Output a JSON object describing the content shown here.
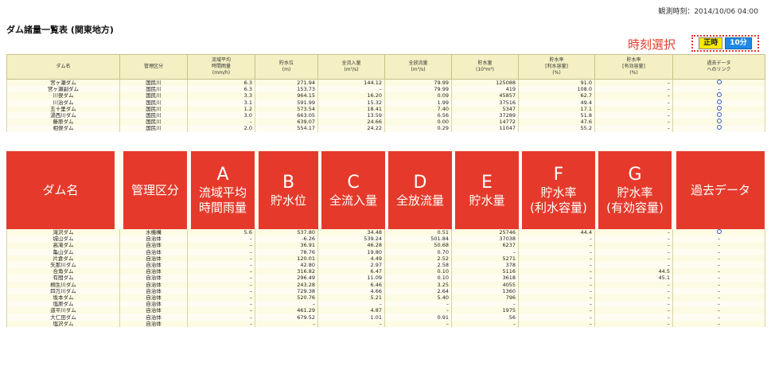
{
  "observation": "観測時刻：2014/10/06 04:00",
  "page_title": "ダム諸量一覧表 (関東地方)",
  "time_select": {
    "label": "時刻選択",
    "btn_hour": "正時",
    "btn_10min": "10分"
  },
  "columns": [
    {
      "l1": "ダム名",
      "l2": "",
      "l3": ""
    },
    {
      "l1": "管理区分",
      "l2": "",
      "l3": ""
    },
    {
      "l1": "流域平均",
      "l2": "時間雨量",
      "l3": "(mm/h)"
    },
    {
      "l1": "貯水位",
      "l2": "(m)",
      "l3": ""
    },
    {
      "l1": "全流入量",
      "l2": "(m³/s)",
      "l3": ""
    },
    {
      "l1": "全放流量",
      "l2": "(m³/s)",
      "l3": ""
    },
    {
      "l1": "貯水量",
      "l2": "(10³m³)",
      "l3": ""
    },
    {
      "l1": "貯水率",
      "l2": "[利水容量]",
      "l3": "(%)"
    },
    {
      "l1": "貯水率",
      "l2": "[有効容量]",
      "l3": "(%)"
    },
    {
      "l1": "過去データ",
      "l2": "へのリンク",
      "l3": ""
    }
  ],
  "rows_top": [
    {
      "name": "宮ヶ瀬ダム",
      "mgmt": "国民川",
      "rain": "6.3",
      "level": "271.94",
      "inflow": "144.12",
      "outflow": "79.99",
      "storage": "125088",
      "rate1": "91.0",
      "rate2": "–",
      "link": true
    },
    {
      "name": "宮ヶ瀬副ダム",
      "mgmt": "国民川",
      "rain": "6.3",
      "level": "153.73",
      "inflow": "–",
      "outflow": "79.99",
      "storage": "419",
      "rate1": "108.0",
      "rate2": "–",
      "link": false
    },
    {
      "name": "川俣ダム",
      "mgmt": "国民川",
      "rain": "3.3",
      "level": "964.15",
      "inflow": "16.20",
      "outflow": "0.09",
      "storage": "45857",
      "rate1": "62.7",
      "rate2": "–",
      "link": true
    },
    {
      "name": "川治ダム",
      "mgmt": "国民川",
      "rain": "3.1",
      "level": "591.99",
      "inflow": "15.32",
      "outflow": "1.99",
      "storage": "37516",
      "rate1": "49.4",
      "rate2": "–",
      "link": true
    },
    {
      "name": "五十里ダム",
      "mgmt": "国民川",
      "rain": "1.2",
      "level": "573.54",
      "inflow": "18.41",
      "outflow": "7.40",
      "storage": "5347",
      "rate1": "17.1",
      "rate2": "–",
      "link": true
    },
    {
      "name": "湯西川ダム",
      "mgmt": "国民川",
      "rain": "3.0",
      "level": "663.05",
      "inflow": "13.59",
      "outflow": "0.56",
      "storage": "37289",
      "rate1": "51.8",
      "rate2": "–",
      "link": true
    },
    {
      "name": "藤原ダム",
      "mgmt": "国民川",
      "rain": "–",
      "level": "639.07",
      "inflow": "24.66",
      "outflow": "0.00",
      "storage": "14772",
      "rate1": "47.6",
      "rate2": "–",
      "link": true
    },
    {
      "name": "相俣ダム",
      "mgmt": "国民川",
      "rain": "2.0",
      "level": "554.17",
      "inflow": "24.22",
      "outflow": "0.29",
      "storage": "11047",
      "rate1": "55.2",
      "rate2": "–",
      "link": true
    }
  ],
  "rows_bottom": [
    {
      "name": "滝沢ダム",
      "mgmt": "水機構",
      "rain": "5.6",
      "level": "537.80",
      "inflow": "34.48",
      "outflow": "0.51",
      "storage": "25746",
      "rate1": "44.4",
      "rate2": "–",
      "link": true
    },
    {
      "name": "城山ダム",
      "mgmt": "自治体",
      "rain": "–",
      "level": "-6.26",
      "inflow": "539.24",
      "outflow": "501.84",
      "storage": "37038",
      "rate1": "–",
      "rate2": "–",
      "link": false
    },
    {
      "name": "高滝ダム",
      "mgmt": "自治体",
      "rain": "–",
      "level": "36.91",
      "inflow": "46.28",
      "outflow": "50.68",
      "storage": "6237",
      "rate1": "–",
      "rate2": "–",
      "link": false
    },
    {
      "name": "亀山ダム",
      "mgmt": "自治体",
      "rain": "–",
      "level": "78.76",
      "inflow": "19.80",
      "outflow": "0.70",
      "storage": "–",
      "rate1": "–",
      "rate2": "–",
      "link": false
    },
    {
      "name": "片倉ダム",
      "mgmt": "自治体",
      "rain": "–",
      "level": "120.01",
      "inflow": "4.49",
      "outflow": "2.52",
      "storage": "5271",
      "rate1": "–",
      "rate2": "–",
      "link": false
    },
    {
      "name": "矢那川ダム",
      "mgmt": "自治体",
      "rain": "–",
      "level": "42.80",
      "inflow": "2.97",
      "outflow": "2.58",
      "storage": "378",
      "rate1": "–",
      "rate2": "–",
      "link": false
    },
    {
      "name": "合角ダム",
      "mgmt": "自治体",
      "rain": "–",
      "level": "316.82",
      "inflow": "6.47",
      "outflow": "0.10",
      "storage": "5116",
      "rate1": "–",
      "rate2": "44.5",
      "link": false
    },
    {
      "name": "有間ダム",
      "mgmt": "自治体",
      "rain": "–",
      "level": "296.49",
      "inflow": "11.09",
      "outflow": "0.10",
      "storage": "3618",
      "rate1": "–",
      "rate2": "45.1",
      "link": false
    },
    {
      "name": "桐生川ダム",
      "mgmt": "自治体",
      "rain": "–",
      "level": "243.28",
      "inflow": "6.46",
      "outflow": "3.25",
      "storage": "4055",
      "rate1": "–",
      "rate2": "–",
      "link": false
    },
    {
      "name": "四万川ダム",
      "mgmt": "自治体",
      "rain": "–",
      "level": "729.38",
      "inflow": "4.66",
      "outflow": "2.64",
      "storage": "1360",
      "rate1": "–",
      "rate2": "–",
      "link": false
    },
    {
      "name": "坂本ダム",
      "mgmt": "自治体",
      "rain": "–",
      "level": "520.76",
      "inflow": "5.21",
      "outflow": "5.40",
      "storage": "796",
      "rate1": "–",
      "rate2": "–",
      "link": false
    },
    {
      "name": "塩原ダム",
      "mgmt": "自治体",
      "rain": "–",
      "level": "–",
      "inflow": "–",
      "outflow": "–",
      "storage": "–",
      "rate1": "–",
      "rate2": "–",
      "link": false
    },
    {
      "name": "道平川ダム",
      "mgmt": "自治体",
      "rain": "–",
      "level": "461.29",
      "inflow": "4.87",
      "outflow": "–",
      "storage": "1975",
      "rate1": "–",
      "rate2": "–",
      "link": false
    },
    {
      "name": "大仁田ダム",
      "mgmt": "自治体",
      "rain": "–",
      "level": "679.52",
      "inflow": "1.01",
      "outflow": "0.91",
      "storage": "56",
      "rate1": "–",
      "rate2": "–",
      "link": false
    },
    {
      "name": "塩沢ダム",
      "mgmt": "自治体",
      "rain": "–",
      "level": "–",
      "inflow": "–",
      "outflow": "–",
      "storage": "–",
      "rate1": "–",
      "rate2": "–",
      "link": false
    }
  ],
  "overlays": [
    {
      "letter": "",
      "label": "ダム名",
      "label2": ""
    },
    {
      "letter": "",
      "label": "管理区分",
      "label2": ""
    },
    {
      "letter": "A",
      "label": "流域平均",
      "label2": "時間雨量"
    },
    {
      "letter": "B",
      "label": "貯水位",
      "label2": ""
    },
    {
      "letter": "C",
      "label": "全流入量",
      "label2": ""
    },
    {
      "letter": "D",
      "label": "全放流量",
      "label2": ""
    },
    {
      "letter": "E",
      "label": "貯水量",
      "label2": ""
    },
    {
      "letter": "F",
      "label": "貯水率",
      "label2": "(利水容量)"
    },
    {
      "letter": "G",
      "label": "貯水率",
      "label2": "(有効容量)"
    },
    {
      "letter": "",
      "label": "過去データ",
      "label2": ""
    }
  ],
  "colors": {
    "accent_red": "#e53a2b",
    "header_bg": "#f4f0c4",
    "btn_yellow": "#f5ea00",
    "btn_blue": "#1e88e5"
  }
}
